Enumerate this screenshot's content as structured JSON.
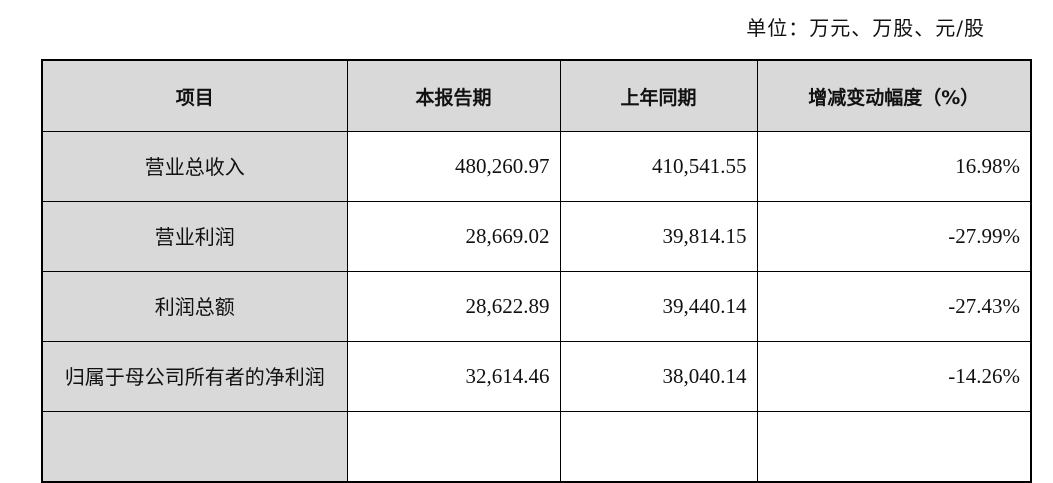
{
  "unit_note": "单位：万元、万股、元/股",
  "table": {
    "headers": [
      "项目",
      "本报告期",
      "上年同期",
      "增减变动幅度（%）"
    ],
    "rows": [
      {
        "item": "营业总收入",
        "current": "480,260.97",
        "prior": "410,541.55",
        "change": "16.98%"
      },
      {
        "item": "营业利润",
        "current": "28,669.02",
        "prior": "39,814.15",
        "change": "-27.99%"
      },
      {
        "item": "利润总额",
        "current": "28,622.89",
        "prior": "39,440.14",
        "change": "-27.43%"
      },
      {
        "item": "归属于母公司所有者的净利润",
        "current": "32,614.46",
        "prior": "38,040.14",
        "change": "-14.26%"
      }
    ]
  }
}
